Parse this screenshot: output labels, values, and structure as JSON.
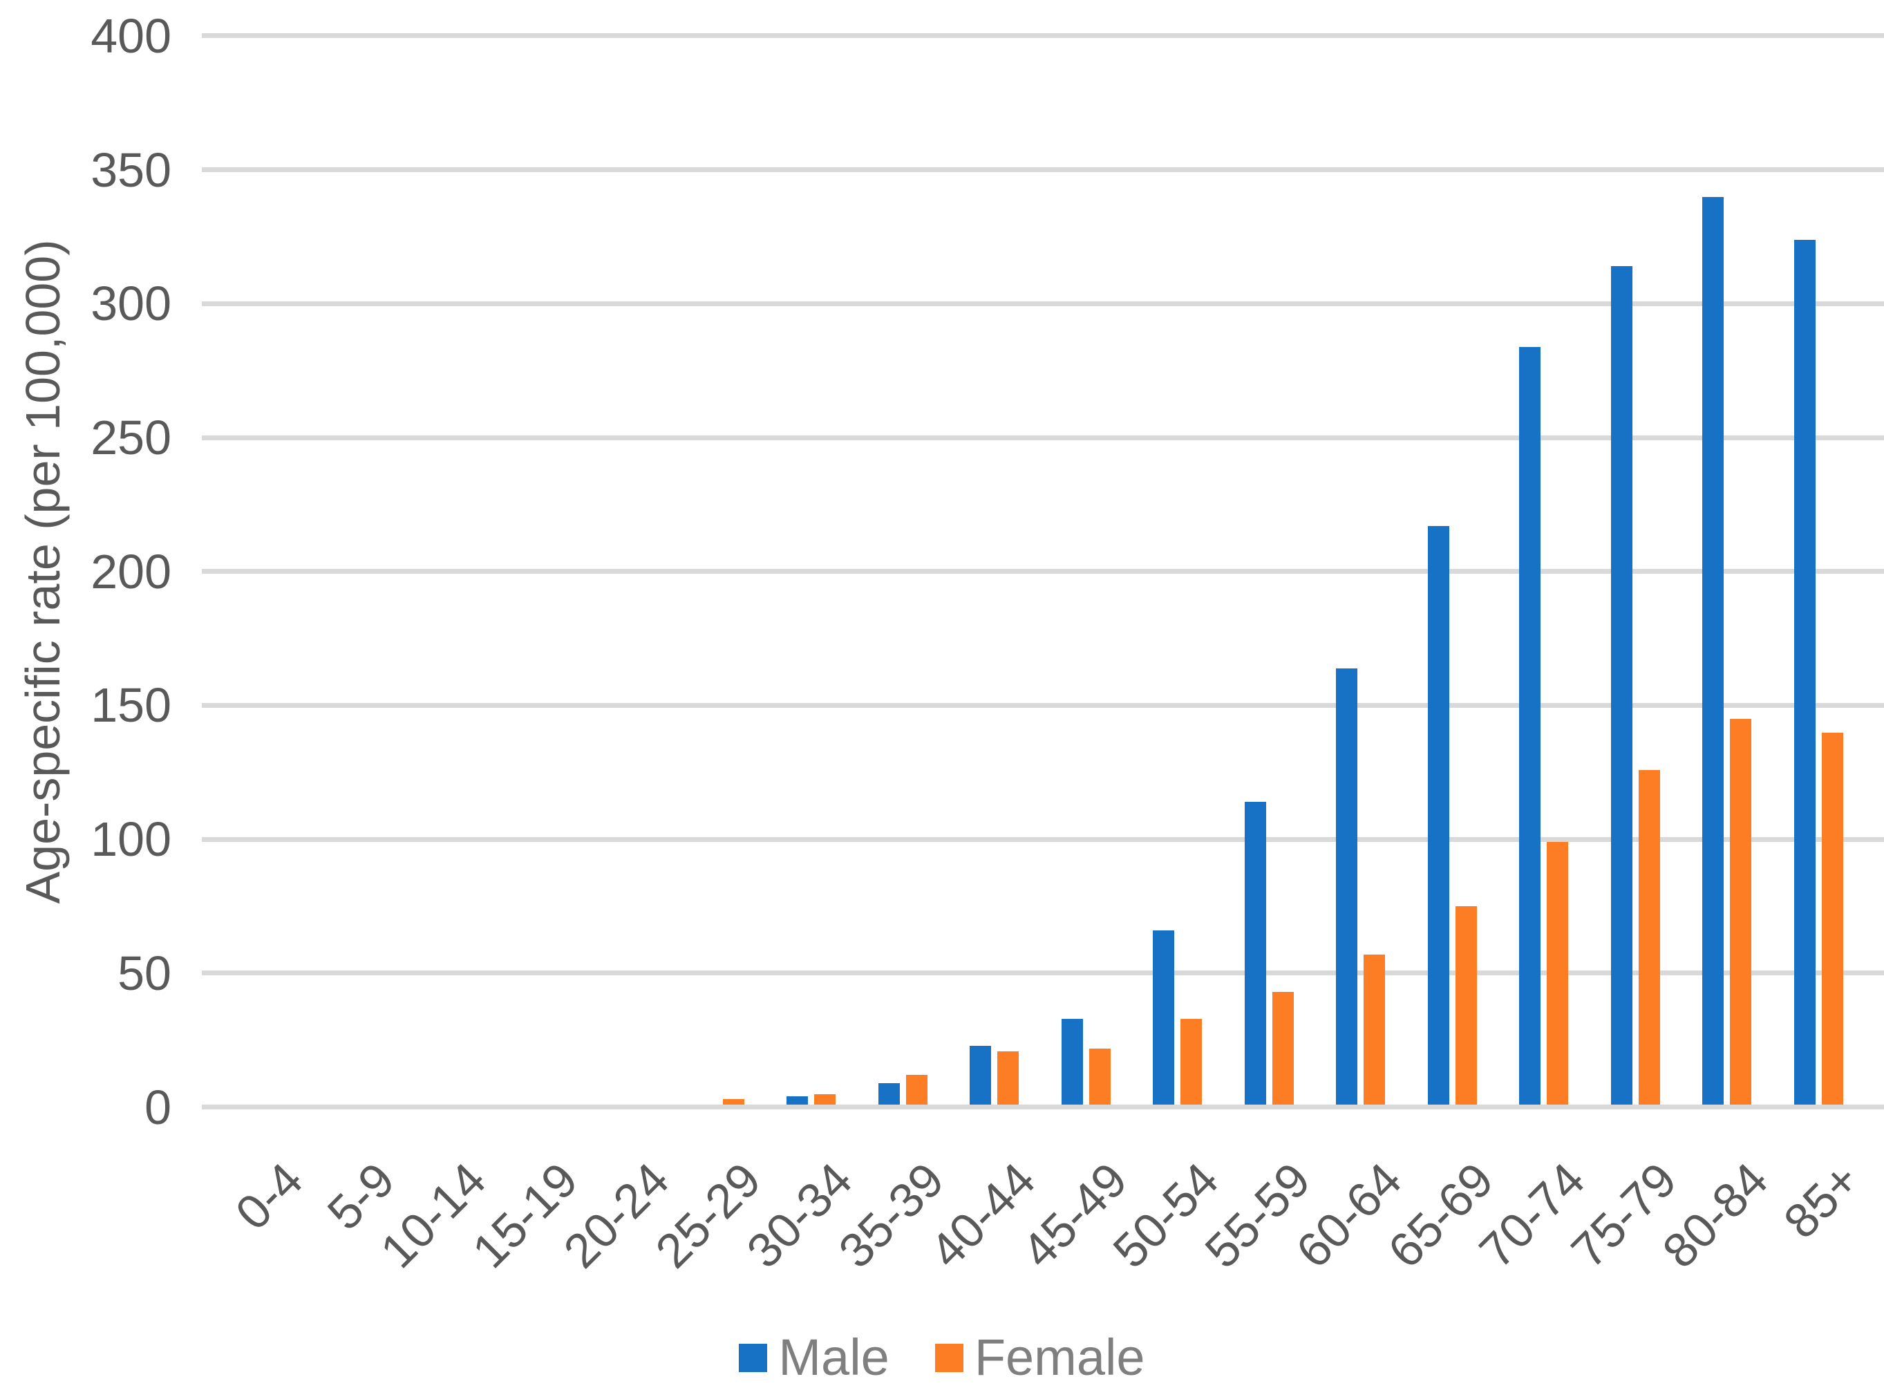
{
  "chart_data": {
    "type": "bar",
    "title": "",
    "xlabel": "",
    "ylabel": "Age-specific rate (per 100,000)",
    "categories": [
      "0-4",
      "5-9",
      "10-14",
      "15-19",
      "20-24",
      "25-29",
      "30-34",
      "35-39",
      "40-44",
      "45-49",
      "50-54",
      "55-59",
      "60-64",
      "65-69",
      "70-74",
      "75-79",
      "80-84",
      "85+"
    ],
    "series": [
      {
        "name": "Male",
        "color": "#1772C6",
        "values": [
          0,
          0,
          0,
          0,
          0,
          0,
          3,
          8,
          22,
          32,
          65,
          113,
          163,
          216,
          283,
          313,
          339,
          323
        ]
      },
      {
        "name": "Female",
        "color": "#FC7D23",
        "values": [
          0,
          0,
          0,
          0,
          0,
          2,
          4,
          11,
          20,
          21,
          32,
          42,
          56,
          74,
          98,
          125,
          144,
          139
        ]
      }
    ],
    "ylim": [
      0,
      400
    ],
    "yticks": [
      0,
      50,
      100,
      150,
      200,
      250,
      300,
      350,
      400
    ],
    "ytick_labels": [
      "0",
      "50",
      "100",
      "150",
      "200",
      "250",
      "300",
      "350",
      "400"
    ],
    "grid": true,
    "gridline_color": "#D9D9D9",
    "axis_text_color": "#595959",
    "legend_text_color": "#7F7F7F",
    "legend_position": "bottom"
  },
  "legend": {
    "male_label": "Male",
    "female_label": "Female"
  }
}
